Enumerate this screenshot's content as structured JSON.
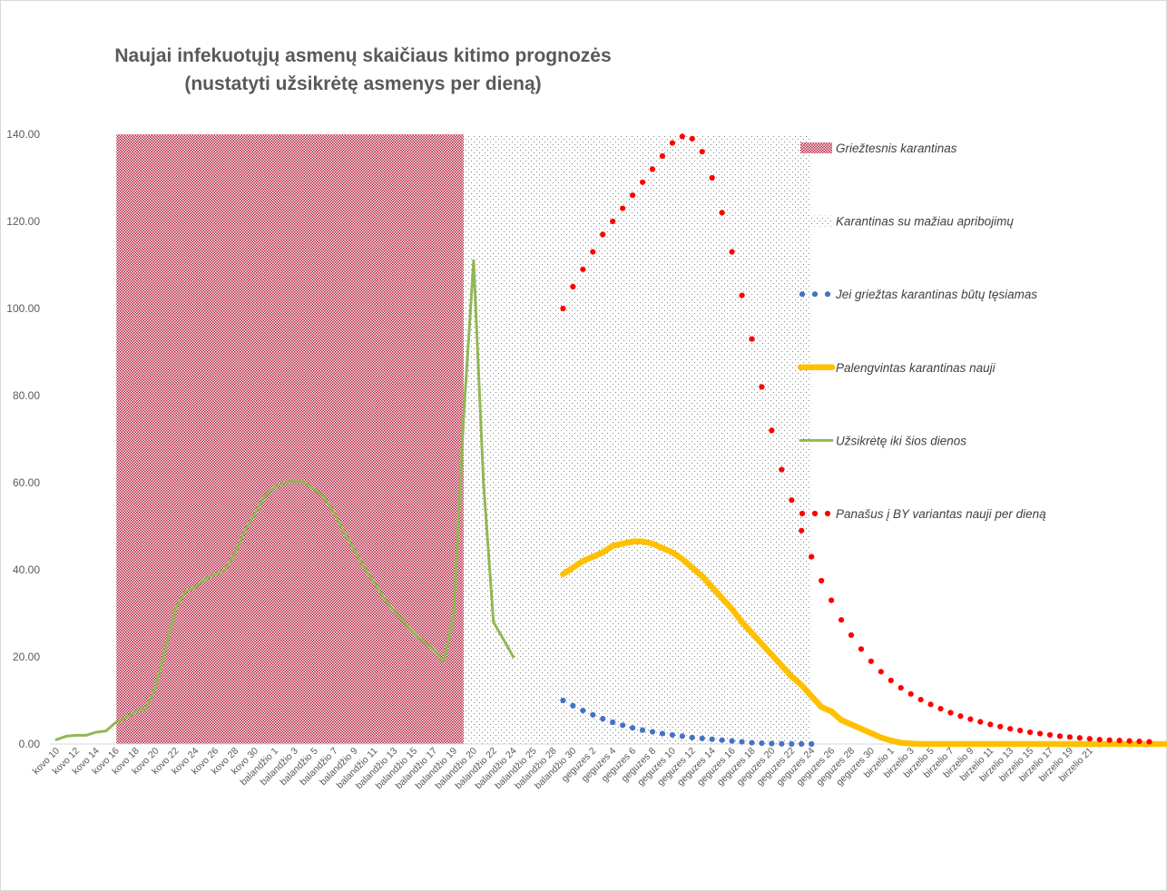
{
  "chart_data": {
    "type": "line",
    "title_line1": "Naujai infekuotųjų asmenų skaičiaus kitimo prognozės",
    "title_line2": "(nustatyti užsikrėtę asmenys per dieną)",
    "xlabel": "",
    "ylabel": "",
    "ylim": [
      0,
      140
    ],
    "y_ticks": [
      "0.00",
      "20.00",
      "40.00",
      "60.00",
      "80.00",
      "100.00",
      "120.00",
      "140.00"
    ],
    "x_tick_labels": [
      "kovo 10",
      "kovo 12",
      "kovo 14",
      "kovo 16",
      "kovo 18",
      "kovo 20",
      "kovo 22",
      "kovo 24",
      "kovo 26",
      "kovo 28",
      "kovo 30",
      "balandžio 1",
      "balandžio 3",
      "balandžio 5",
      "balandžio 7",
      "balandžio 9",
      "balandžio 11",
      "balandžio 13",
      "balandžio 15",
      "balandžio 17",
      "balandžio 19",
      "balandžio 20",
      "balandžio 22",
      "balandžio 24",
      "balandžio 25",
      "balandžio 28",
      "balandžio 30",
      "geguzes 2",
      "geguzes 4",
      "geguzes 6",
      "geguzes 8",
      "geguzes 10",
      "geguzes 12",
      "geguzes 14",
      "geguzes 16",
      "geguzes 18",
      "geguzes 20",
      "geguzes 22",
      "geguzes 24",
      "geguzes 26",
      "geguzes 28",
      "geguzes 30",
      "birzelio 1",
      "birzelio 3",
      "birzelio 5",
      "birzelio 7",
      "birzelio 9",
      "birzelio 11",
      "birzelio 13",
      "birzelio 15",
      "birzelio 17",
      "birzelio 19",
      "birzelio 21"
    ],
    "num_days": 112,
    "shaded_regions": [
      {
        "name": "Griežtesnis karantinas",
        "start_day": 6,
        "end_day": 41,
        "ymax": 140,
        "style": "dense-red"
      },
      {
        "name": "Karantinas su mažiau apribojimų",
        "start_day": 41,
        "end_day": 76,
        "ymax": 140,
        "style": "sparse-dots"
      }
    ],
    "series": [
      {
        "name": "Jei griežtas karantinas būtų tęsiamas",
        "color": "#4472c4",
        "style": "dots",
        "start_day": 51,
        "values": [
          10,
          8.8,
          7.7,
          6.7,
          5.8,
          5.0,
          4.3,
          3.7,
          3.2,
          2.8,
          2.4,
          2.1,
          1.8,
          1.5,
          1.3,
          1.1,
          0.9,
          0.7,
          0.5,
          0.3,
          0.2,
          0.1,
          0.05,
          0.02,
          0.01,
          0.0
        ]
      },
      {
        "name": "Palengvintas karantinas nauji",
        "color": "#ffc000",
        "style": "thick",
        "start_day": 51,
        "values": [
          39,
          40.5,
          42,
          43,
          44,
          45.5,
          46,
          46.5,
          46.5,
          46,
          45,
          44,
          42.5,
          40.5,
          38.5,
          36,
          33.5,
          31,
          28,
          25.5,
          23,
          20.5,
          18,
          15.5,
          13.5,
          11,
          8.5,
          7.5,
          5.5,
          4.5,
          3.5,
          2.5,
          1.5,
          0.8,
          0.3,
          0.1,
          0,
          0,
          0,
          0,
          0,
          0,
          0,
          0,
          0,
          0,
          0,
          0,
          0,
          0,
          0,
          0,
          0,
          0,
          0,
          0,
          0,
          0,
          0,
          0,
          0,
          0,
          0,
          0,
          0,
          0,
          0,
          0,
          0,
          0,
          0,
          0,
          0,
          0,
          0
        ]
      },
      {
        "name": "Užsikrėtę iki šios dienos",
        "color": "#92b755",
        "style": "line",
        "start_day": 0,
        "values": [
          1,
          1.8,
          2.0,
          2.0,
          2.7,
          3.0,
          5.0,
          6.0,
          7.5,
          8.0,
          13,
          22,
          31,
          35,
          36,
          38,
          39,
          40,
          44,
          49,
          53,
          57,
          59,
          60,
          60.5,
          60,
          58.5,
          56.5,
          53,
          48.5,
          44.5,
          40.5,
          37,
          33.5,
          30.5,
          28,
          25.5,
          23.5,
          21.5,
          19,
          30,
          75,
          111,
          60,
          28,
          24,
          20
        ]
      },
      {
        "name": "Panašus į BY variantas nauji per dieną",
        "color": "#ff0000",
        "style": "dots",
        "start_day": 51,
        "values": [
          100,
          105,
          109,
          113,
          117,
          120,
          123,
          126,
          129,
          132,
          135,
          138,
          139.5,
          139,
          136,
          130,
          122,
          113,
          103,
          93,
          82,
          72,
          63,
          56,
          49,
          43,
          37.5,
          33,
          28.5,
          25,
          21.8,
          19.0,
          16.6,
          14.6,
          12.9,
          11.5,
          10.2,
          9.1,
          8.1,
          7.2,
          6.4,
          5.7,
          5.1,
          4.5,
          4.0,
          3.5,
          3.1,
          2.7,
          2.4,
          2.1,
          1.8,
          1.6,
          1.4,
          1.2,
          1.0,
          0.9,
          0.8,
          0.7,
          0.6,
          0.5
        ]
      }
    ],
    "legend": {
      "placement": "right"
    }
  }
}
